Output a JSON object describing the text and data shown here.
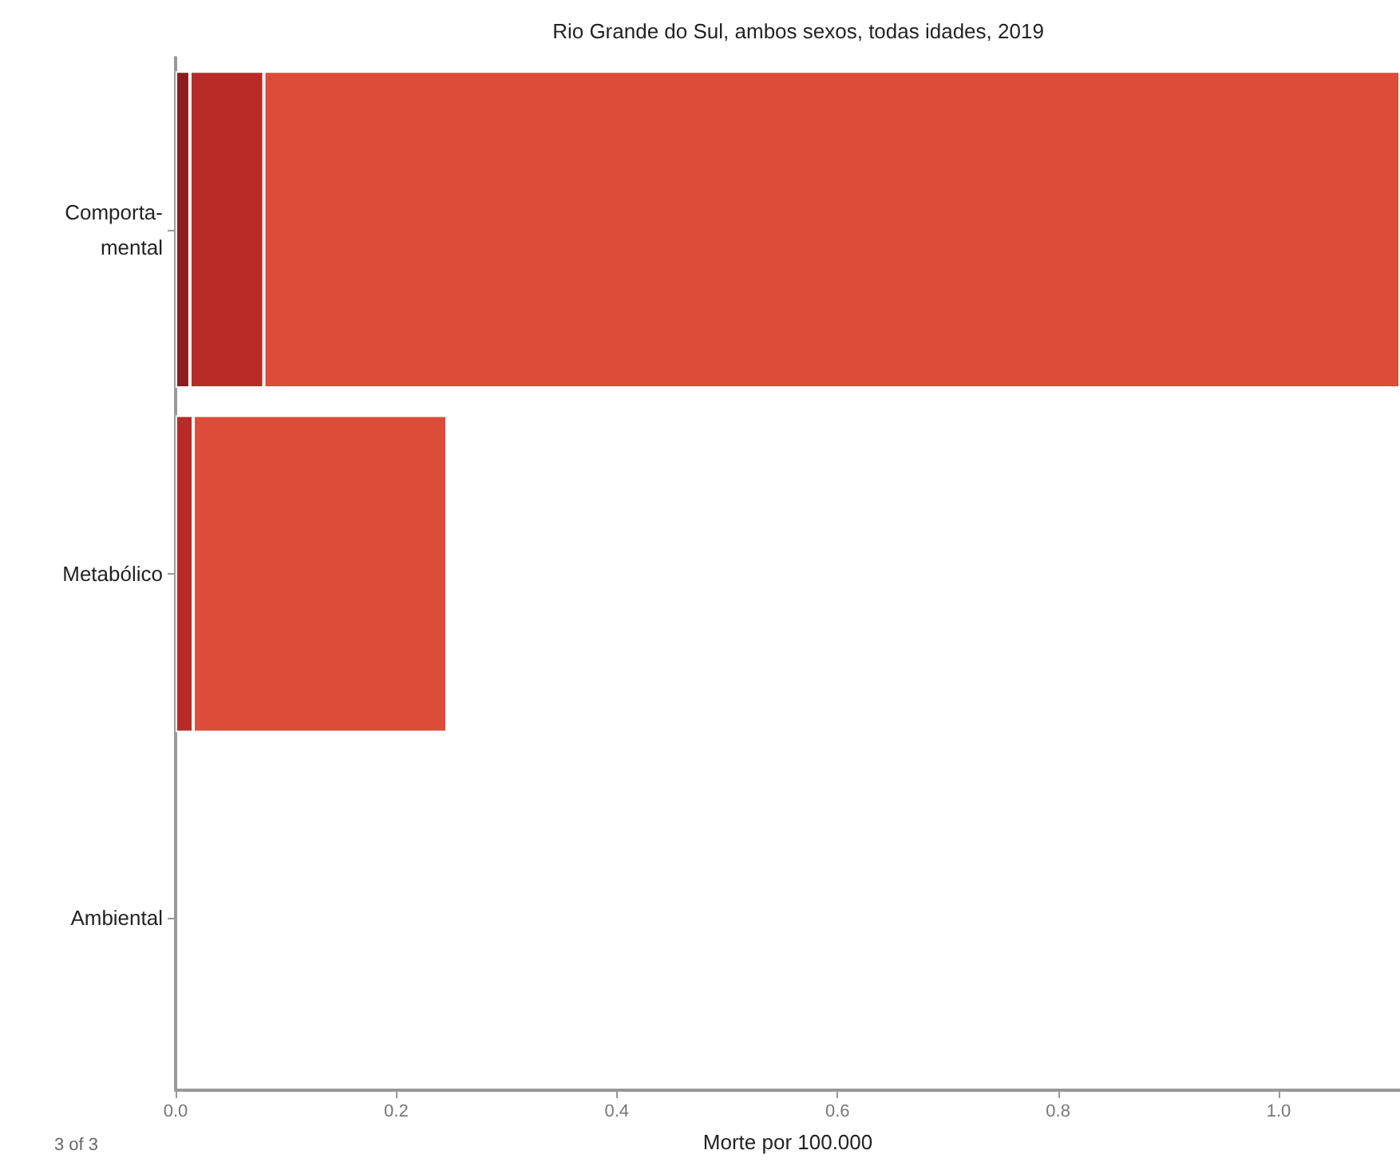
{
  "chart_data": {
    "type": "bar",
    "orientation": "horizontal",
    "stacked": true,
    "title": "Rio Grande do Sul, ambos sexos, todas idades, 2019",
    "xlabel": "Morte por 100.000",
    "categories": [
      "Comporta-mental",
      "Metabólico",
      "Ambiental"
    ],
    "series": [
      {
        "color": "#8c1d1d",
        "values": [
          0.013,
          null,
          null
        ]
      },
      {
        "color": "#b92b27",
        "values": [
          0.067,
          0.016,
          null
        ]
      },
      {
        "color": "#dd4b39",
        "values": [
          1.03,
          0.23,
          null
        ]
      }
    ],
    "xlim": [
      0,
      1.11
    ],
    "xticks": [
      {
        "value": 0,
        "label": "0.0"
      },
      {
        "value": 0.2,
        "label": "0.2"
      },
      {
        "value": 0.4,
        "label": "0.4"
      },
      {
        "value": 0.6,
        "label": "0.6"
      },
      {
        "value": 0.8,
        "label": "0.8"
      },
      {
        "value": 1,
        "label": "1.0"
      }
    ],
    "annotations": [
      "3 of 3"
    ]
  }
}
